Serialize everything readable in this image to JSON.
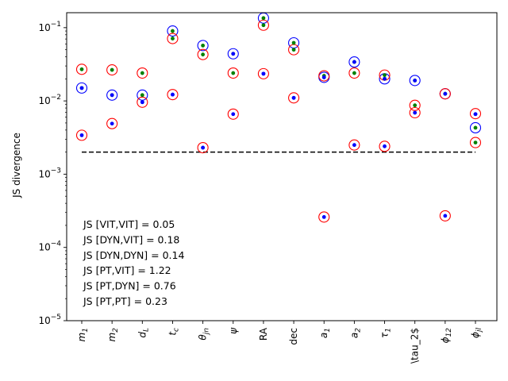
{
  "chart_data": {
    "type": "scatter",
    "ylabel": "JS divergence",
    "yscale": "log",
    "ylim": [
      1e-05,
      0.16
    ],
    "yticks": [
      {
        "value": 1e-05,
        "base": "10",
        "exp": "−5"
      },
      {
        "value": 0.0001,
        "base": "10",
        "exp": "−4"
      },
      {
        "value": 0.001,
        "base": "10",
        "exp": "−3"
      },
      {
        "value": 0.01,
        "base": "10",
        "exp": "−2"
      },
      {
        "value": 0.1,
        "base": "10",
        "exp": "−1"
      }
    ],
    "categories": [
      {
        "base": "m",
        "sub": "1",
        "italic": true
      },
      {
        "base": "m",
        "sub": "2",
        "italic": true
      },
      {
        "base": "d",
        "sub": "L",
        "italic": true
      },
      {
        "base": "t",
        "sub": "c",
        "italic": true
      },
      {
        "base": "θ",
        "sub": "jn",
        "italic": true
      },
      {
        "base": "ψ",
        "sub": "",
        "italic": true
      },
      {
        "base": "RA",
        "sub": "",
        "italic": false
      },
      {
        "base": "dec",
        "sub": "",
        "italic": false
      },
      {
        "base": "a",
        "sub": "1",
        "italic": true
      },
      {
        "base": "a",
        "sub": "2",
        "italic": true
      },
      {
        "base": "τ",
        "sub": "1",
        "italic": true
      },
      {
        "base": "\\tau_2$",
        "sub": "",
        "italic": false
      },
      {
        "base": "ϕ",
        "sub": "12",
        "italic": true
      },
      {
        "base": "ϕ",
        "sub": "jl",
        "italic": true
      }
    ],
    "series": [
      {
        "marker": "blue-ring",
        "color": "#0000ff",
        "values": [
          0.015,
          0.012,
          0.012,
          0.09,
          0.057,
          0.044,
          0.135,
          0.062,
          0.021,
          0.034,
          0.02,
          0.019,
          0.0125,
          0.0043
        ]
      },
      {
        "marker": "red-ring",
        "color": "#ff0000",
        "values": [
          0.027,
          0.0265,
          0.024,
          0.071,
          0.043,
          0.024,
          0.108,
          0.05,
          0.022,
          0.024,
          0.0225,
          0.0087,
          0.0125,
          0.0067
        ]
      },
      {
        "marker": "red-ring",
        "color": "#ff0000",
        "values": [
          0.0034,
          0.0049,
          0.0096,
          0.0122,
          0.0023,
          0.0066,
          0.0235,
          0.011,
          0.00026,
          0.0025,
          0.0024,
          0.0069,
          0.00027,
          0.0027
        ]
      },
      {
        "marker": "blue-dot",
        "color": "#0000ff",
        "values": [
          0.0034,
          0.0049,
          0.0096,
          0.0122,
          0.0023,
          0.0066,
          0.0235,
          0.011,
          0.00026,
          0.0025,
          0.0024,
          0.0069,
          0.00027,
          0.0066
        ]
      },
      {
        "marker": "green-dot",
        "color": "#008000",
        "values": [
          0.027,
          0.0265,
          0.024,
          0.071,
          0.043,
          0.024,
          0.108,
          0.05,
          0.022,
          0.024,
          0.0225,
          0.0087,
          0.0125,
          0.0027
        ]
      },
      {
        "marker": "green-dot",
        "color": "#008000",
        "values": [
          0.015,
          0.012,
          0.012,
          0.09,
          0.057,
          0.044,
          0.135,
          0.062,
          0.021,
          0.034,
          0.02,
          0.019,
          0.0125,
          0.0043
        ]
      },
      {
        "marker": "blue-dot",
        "color": "#0000ff",
        "values": [
          0.015,
          0.012,
          0.0096,
          0.0122,
          0.0023,
          0.044,
          0.0235,
          0.011,
          0.021,
          0.034,
          0.02,
          0.019,
          0.0125,
          0.0066
        ]
      }
    ],
    "threshold": {
      "value": 0.002,
      "style": "dashed",
      "color": "#000000"
    },
    "annotations": [
      "JS [VIT,VIT] = 0.05",
      "JS [DYN,VIT] = 0.18",
      "JS [DYN,DYN] = 0.14",
      "JS [PT,VIT] = 1.22",
      "JS [PT,DYN] = 0.76",
      "JS [PT,PT] = 0.23"
    ],
    "grid": false,
    "legend": "none"
  }
}
